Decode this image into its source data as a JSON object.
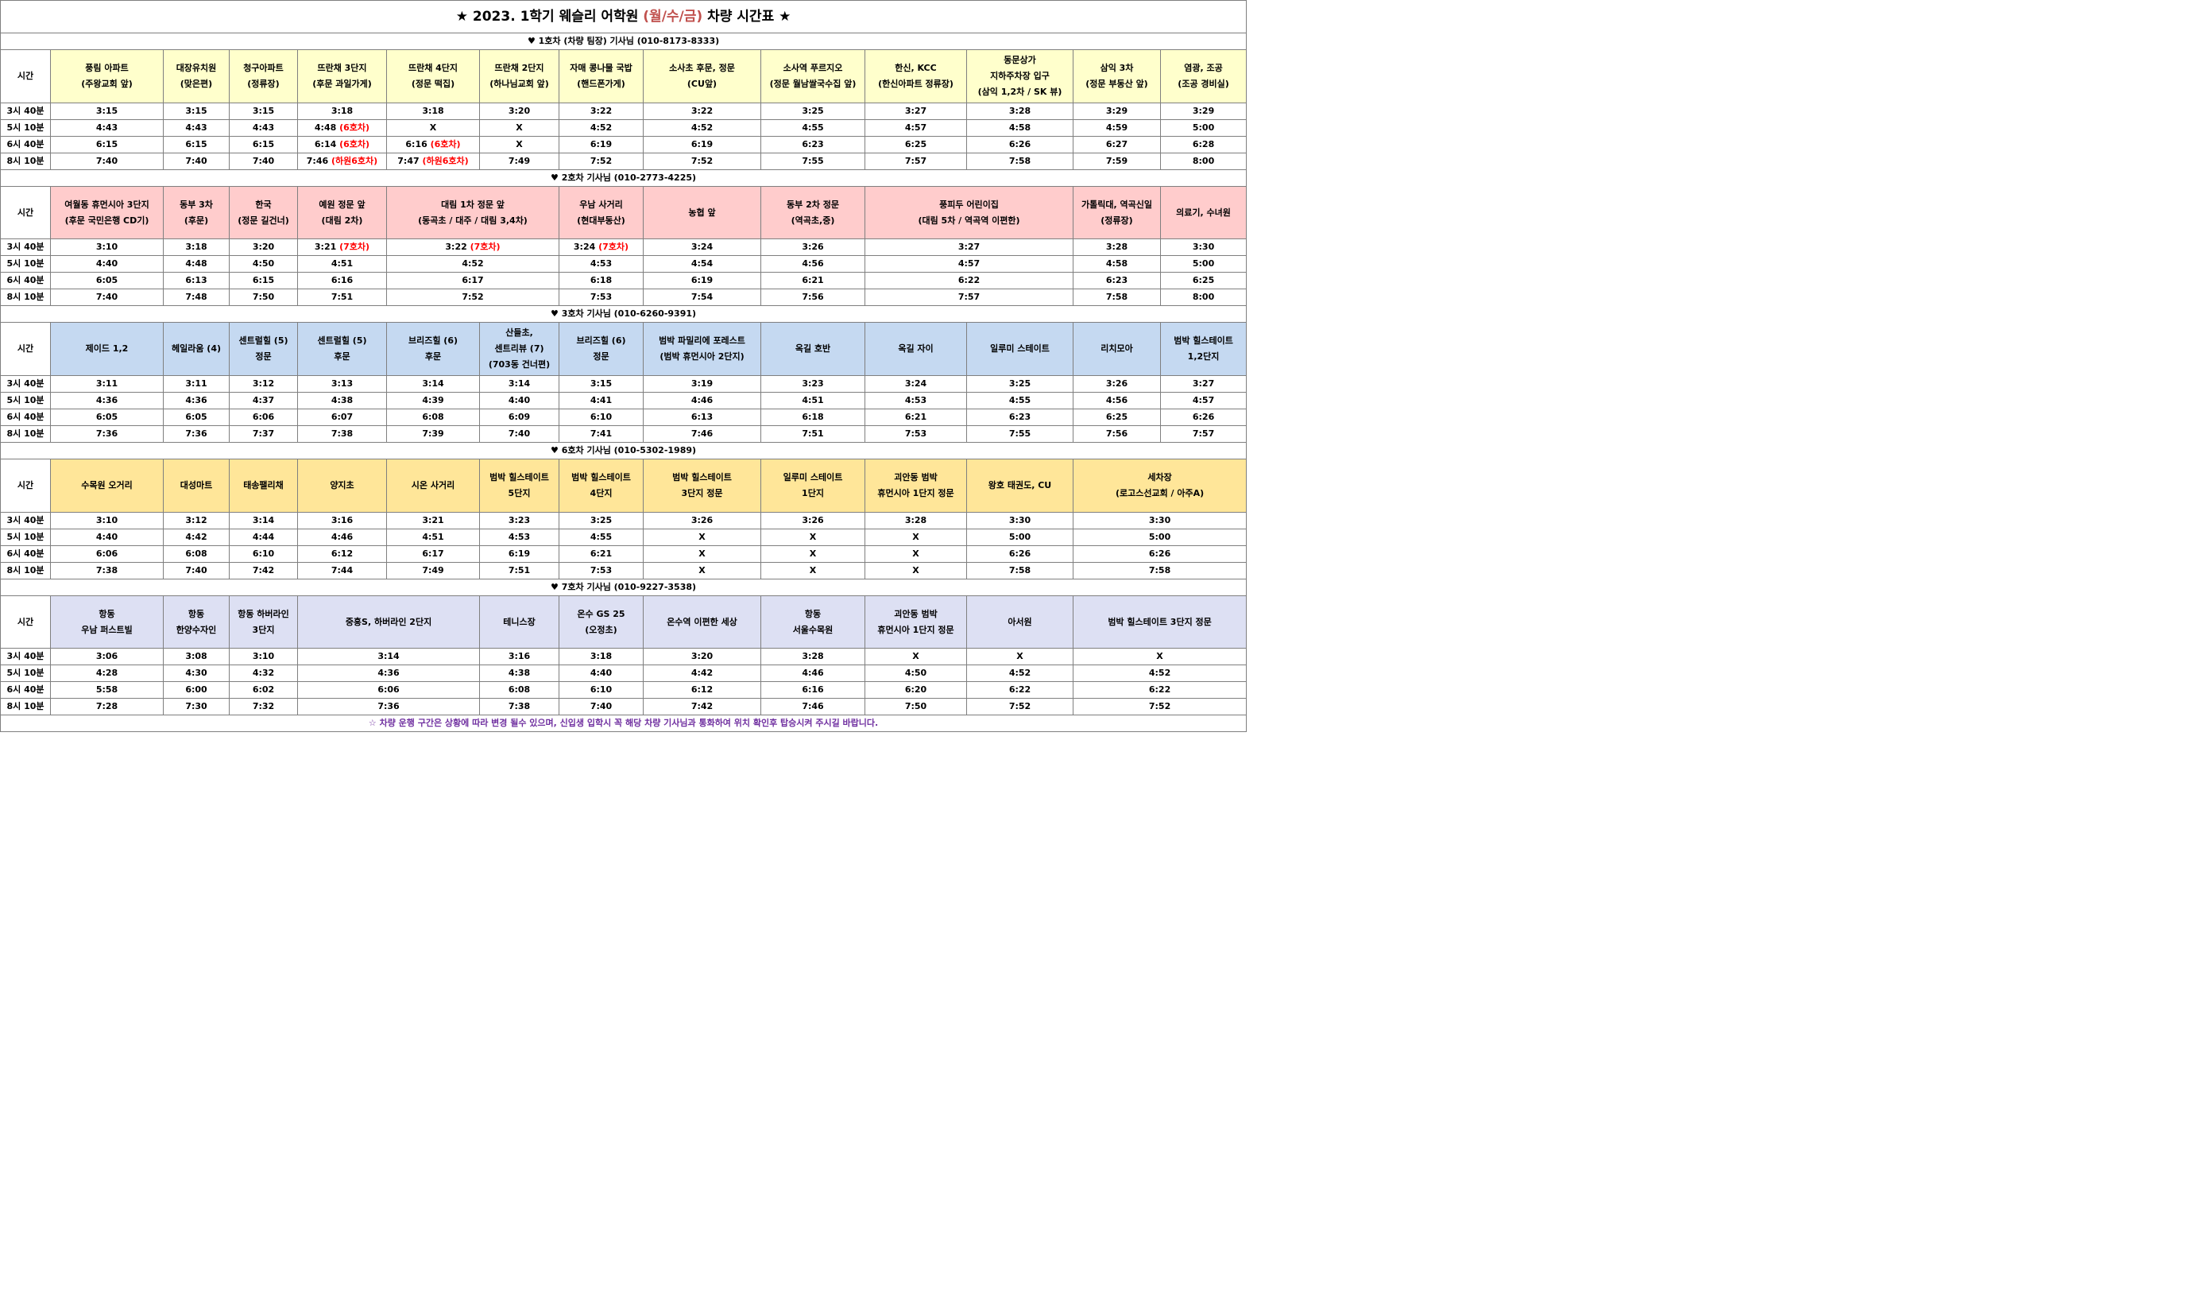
{
  "title": {
    "prefix": "★ 2023. 1학기 웨슬리 어학원 ",
    "days": "(월/수/금)",
    "suffix": " 차량 시간표 ★"
  },
  "time_label": "시간",
  "time_slots": [
    "3시 40분",
    "5시 10분",
    "6시 40분",
    "8시 10분"
  ],
  "bus1": {
    "header": "♥ 1호차 (차량 팀장) 기사님 (010-8173-8333)",
    "stops": [
      [
        "풍림 아파트",
        "(주왕교회 앞)"
      ],
      [
        "대장유치원",
        "(맞은편)"
      ],
      [
        "청구아파트",
        "(정류장)"
      ],
      [
        "뜨란채 3단지",
        "(후문 과일가게)"
      ],
      [
        "뜨란채 4단지",
        "(정문 떡집)"
      ],
      [
        "뜨란채 2단지",
        "(하나님교회 앞)"
      ],
      [
        "자매 콩나물 국밥",
        "(핸드폰가게)"
      ],
      [
        "소사초 후문, 정문",
        "(CU앞)"
      ],
      [
        "소사역 푸르지오",
        "(정문 월남쌀국수집 앞)"
      ],
      [
        "한신, KCC",
        "(한신아파트 정류장)"
      ],
      [
        "동문상가",
        "지하주차장 입구",
        "(삼익 1,2차 / SK 뷰)"
      ],
      [
        "삼익 3차",
        "(정문 부동산 앞)"
      ],
      [
        "염광, 조공",
        "(조공 경비실)"
      ]
    ],
    "rows": [
      [
        "3:15",
        "3:15",
        "3:15",
        "3:18",
        "3:18",
        "3:20",
        "3:22",
        "3:22",
        "3:25",
        "3:27",
        "3:28",
        "3:29",
        "3:29"
      ],
      [
        "4:43",
        "4:43",
        "4:43",
        "4:48",
        "X",
        "X",
        "4:52",
        "4:52",
        "4:55",
        "4:57",
        "4:58",
        "4:59",
        "5:00"
      ],
      [
        "6:15",
        "6:15",
        "6:15",
        "6:14",
        "6:16",
        "X",
        "6:19",
        "6:19",
        "6:23",
        "6:25",
        "6:26",
        "6:27",
        "6:28"
      ],
      [
        "7:40",
        "7:40",
        "7:40",
        "7:46",
        "7:47",
        "7:49",
        "7:52",
        "7:52",
        "7:55",
        "7:57",
        "7:58",
        "7:59",
        "8:00"
      ]
    ],
    "notes": {
      "6호차": "(6호차)",
      "하원6호차": "(하원6호차)"
    }
  },
  "bus2": {
    "header": "♥ 2호차 기사님 (010-2773-4225)",
    "stops": [
      [
        "여월동 휴먼시아 3단지",
        "(후문 국민은행 CD기)"
      ],
      [
        "동부 3차",
        "(후문)"
      ],
      [
        "한국",
        "(정문 길건너)"
      ],
      [
        "예원 정문 앞",
        "(대림 2차)"
      ],
      [
        "대림 1차 정문 앞",
        "(동곡초 / 대주 / 대림 3,4차)"
      ],
      [
        "우남 사거리",
        "(현대부동산)"
      ],
      [
        "농협 앞"
      ],
      [
        "동부 2차 정문",
        "(역곡초,중)"
      ],
      [
        "풍피두 어린이집",
        "(대림 5차 / 역곡역 이편한)"
      ],
      [
        "가톨릭대, 역곡신일",
        "(정류장)"
      ],
      [
        "의료기, 수녀원"
      ]
    ],
    "rows": [
      [
        "3:10",
        "3:18",
        "3:20",
        "3:21",
        "3:22",
        "3:24",
        "3:24",
        "3:26",
        "3:27",
        "3:28",
        "3:30"
      ],
      [
        "4:40",
        "4:48",
        "4:50",
        "4:51",
        "4:52",
        "4:53",
        "4:54",
        "4:56",
        "4:57",
        "4:58",
        "5:00"
      ],
      [
        "6:05",
        "6:13",
        "6:15",
        "6:16",
        "6:17",
        "6:18",
        "6:19",
        "6:21",
        "6:22",
        "6:23",
        "6:25"
      ],
      [
        "7:40",
        "7:48",
        "7:50",
        "7:51",
        "7:52",
        "7:53",
        "7:54",
        "7:56",
        "7:57",
        "7:58",
        "8:00"
      ]
    ],
    "note": "(7호차)"
  },
  "bus3": {
    "header": "♥ 3호차 기사님  (010-6260-9391)",
    "stops": [
      [
        "제이드 1,2"
      ],
      [
        "헤일라움 (4)"
      ],
      [
        "센트럴힐 (5)",
        "정문"
      ],
      [
        "센트럴힐 (5)",
        "후문"
      ],
      [
        "브리즈힐 (6)",
        "후문"
      ],
      [
        "산들초,",
        "센트리뷰 (7)",
        "(703동 건너편)"
      ],
      [
        "브리즈힐 (6)",
        "정문"
      ],
      [
        "범박 파밀리에 포레스트",
        "(범박 휴먼시아 2단지)"
      ],
      [
        "옥길 호반"
      ],
      [
        "옥길 자이"
      ],
      [
        "일루미 스테이트"
      ],
      [
        "리치모아"
      ],
      [
        "범박 힐스테이트",
        "1,2단지"
      ]
    ],
    "rows": [
      [
        "3:11",
        "3:11",
        "3:12",
        "3:13",
        "3:14",
        "3:14",
        "3:15",
        "3:19",
        "3:23",
        "3:24",
        "3:25",
        "3:26",
        "3:27"
      ],
      [
        "4:36",
        "4:36",
        "4:37",
        "4:38",
        "4:39",
        "4:40",
        "4:41",
        "4:46",
        "4:51",
        "4:53",
        "4:55",
        "4:56",
        "4:57"
      ],
      [
        "6:05",
        "6:05",
        "6:06",
        "6:07",
        "6:08",
        "6:09",
        "6:10",
        "6:13",
        "6:18",
        "6:21",
        "6:23",
        "6:25",
        "6:26"
      ],
      [
        "7:36",
        "7:36",
        "7:37",
        "7:38",
        "7:39",
        "7:40",
        "7:41",
        "7:46",
        "7:51",
        "7:53",
        "7:55",
        "7:56",
        "7:57"
      ]
    ]
  },
  "bus6": {
    "header": "♥ 6호차 기사님  (010-5302-1989)",
    "stops": [
      [
        "수목원 오거리"
      ],
      [
        "대성마트"
      ],
      [
        "태송팰리채"
      ],
      [
        "양지초"
      ],
      [
        "시온 사거리"
      ],
      [
        "범박 힐스테이트",
        "5단지"
      ],
      [
        "범박 힐스테이트",
        "4단지"
      ],
      [
        "범박 힐스테이트",
        "3단지 정문"
      ],
      [
        "일루미 스테이트",
        "1단지"
      ],
      [
        "괴안동 범박",
        "휴먼시아 1단지 정문"
      ],
      [
        "왕호 태권도, CU"
      ],
      [
        "세차장",
        "(로고스선교회 / 아주A)"
      ]
    ],
    "rows": [
      [
        "3:10",
        "3:12",
        "3:14",
        "3:16",
        "3:21",
        "3:23",
        "3:25",
        "3:26",
        "3:26",
        "3:28",
        "3:30",
        "3:30"
      ],
      [
        "4:40",
        "4:42",
        "4:44",
        "4:46",
        "4:51",
        "4:53",
        "4:55",
        "X",
        "X",
        "X",
        "5:00",
        "5:00"
      ],
      [
        "6:06",
        "6:08",
        "6:10",
        "6:12",
        "6:17",
        "6:19",
        "6:21",
        "X",
        "X",
        "X",
        "6:26",
        "6:26"
      ],
      [
        "7:38",
        "7:40",
        "7:42",
        "7:44",
        "7:49",
        "7:51",
        "7:53",
        "X",
        "X",
        "X",
        "7:58",
        "7:58"
      ]
    ]
  },
  "bus7": {
    "header": "♥ 7호차 기사님  (010-9227-3538)",
    "stops": [
      [
        "항동",
        "우남 퍼스트빌"
      ],
      [
        "항동",
        "한양수자인"
      ],
      [
        "항동 하버라인",
        "3단지"
      ],
      [
        "중흥S, 하버라인 2단지"
      ],
      [
        "테니스장"
      ],
      [
        "온수 GS 25",
        "(오정초)"
      ],
      [
        "온수역 이편한 세상"
      ],
      [
        "항동",
        "서울수목원"
      ],
      [
        "괴안동 범박",
        "휴먼시아 1단지 정문"
      ],
      [
        "아서원"
      ],
      [
        "범박 힐스테이트 3단지 정문"
      ]
    ],
    "rows": [
      [
        "3:06",
        "3:08",
        "3:10",
        "3:14",
        "3:16",
        "3:18",
        "3:20",
        "3:28",
        "X",
        "X",
        "X"
      ],
      [
        "4:28",
        "4:30",
        "4:32",
        "4:36",
        "4:38",
        "4:40",
        "4:42",
        "4:46",
        "4:50",
        "4:52",
        "4:52"
      ],
      [
        "5:58",
        "6:00",
        "6:02",
        "6:06",
        "6:08",
        "6:10",
        "6:12",
        "6:16",
        "6:20",
        "6:22",
        "6:22"
      ],
      [
        "7:28",
        "7:30",
        "7:32",
        "7:36",
        "7:38",
        "7:40",
        "7:42",
        "7:46",
        "7:50",
        "7:52",
        "7:52"
      ]
    ]
  },
  "footer": "☆ 차량 운행 구간은 상황에 따라 변경 될수 있으며, 신입생 입학시 꼭 해당 차량 기사님과 통화하여 위치 확인후 탑승시켜 주시길 바랍니다."
}
